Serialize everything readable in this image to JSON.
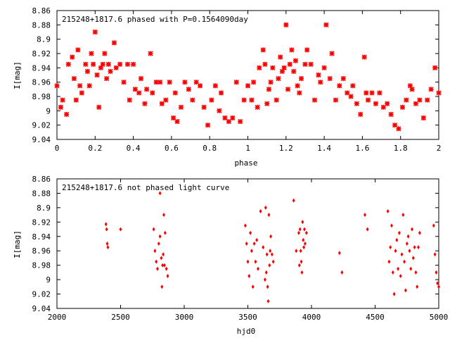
{
  "chart_data": [
    {
      "type": "scatter",
      "title": "215248+1817.6 phased with P=0.1564090day",
      "xlabel": "phase",
      "ylabel": "I[mag]",
      "xlim": [
        0,
        2
      ],
      "ylim": [
        9.04,
        8.86
      ],
      "y_inverted": true,
      "grid": false,
      "marker": "star",
      "color": "#ff0000",
      "xticks": [
        "0",
        "0.2",
        "0.4",
        "0.6",
        "0.8",
        "1",
        "1.2",
        "1.4",
        "1.6",
        "1.8",
        "2"
      ],
      "yticks": [
        "8.86",
        "8.88",
        "8.9",
        "8.92",
        "8.94",
        "8.96",
        "8.98",
        "9",
        "9.02",
        "9.04"
      ],
      "x": [
        0.0,
        0.02,
        0.03,
        0.05,
        0.06,
        0.08,
        0.09,
        0.1,
        0.11,
        0.12,
        0.13,
        0.15,
        0.16,
        0.17,
        0.18,
        0.19,
        0.2,
        0.21,
        0.22,
        0.23,
        0.24,
        0.25,
        0.26,
        0.27,
        0.28,
        0.3,
        0.31,
        0.33,
        0.35,
        0.37,
        0.38,
        0.4,
        0.41,
        0.43,
        0.44,
        0.46,
        0.47,
        0.49,
        0.5,
        0.52,
        0.54,
        0.55,
        0.57,
        0.59,
        0.61,
        0.62,
        0.63,
        0.65,
        0.67,
        0.69,
        0.71,
        0.73,
        0.75,
        0.77,
        0.79,
        0.81,
        0.83,
        0.85,
        0.86,
        0.88,
        0.9,
        0.92,
        0.94,
        0.96,
        0.98,
        1.0,
        1.02,
        1.03,
        1.05,
        1.06,
        1.08,
        1.09,
        1.1,
        1.11,
        1.12,
        1.13,
        1.15,
        1.16,
        1.17,
        1.18,
        1.19,
        1.2,
        1.21,
        1.22,
        1.23,
        1.24,
        1.25,
        1.26,
        1.27,
        1.28,
        1.3,
        1.31,
        1.33,
        1.35,
        1.37,
        1.38,
        1.4,
        1.41,
        1.43,
        1.44,
        1.46,
        1.48,
        1.5,
        1.52,
        1.54,
        1.55,
        1.57,
        1.59,
        1.61,
        1.62,
        1.63,
        1.65,
        1.67,
        1.69,
        1.71,
        1.73,
        1.75,
        1.77,
        1.79,
        1.81,
        1.83,
        1.85,
        1.86,
        1.88,
        1.9,
        1.92,
        1.94,
        1.96,
        1.98,
        2.0
      ],
      "y": [
        8.965,
        8.995,
        8.985,
        9.005,
        8.935,
        8.925,
        8.955,
        8.985,
        8.915,
        8.965,
        8.975,
        8.935,
        8.945,
        8.965,
        8.92,
        8.935,
        8.89,
        8.95,
        8.995,
        8.94,
        8.935,
        8.92,
        8.955,
        8.935,
        8.945,
        8.905,
        8.94,
        8.935,
        8.96,
        8.935,
        8.985,
        8.935,
        8.97,
        8.975,
        8.955,
        8.99,
        8.97,
        8.92,
        8.975,
        8.96,
        8.96,
        8.99,
        8.985,
        8.96,
        9.01,
        8.975,
        9.015,
        8.995,
        8.96,
        8.97,
        8.985,
        8.96,
        8.965,
        8.995,
        9.02,
        8.985,
        8.965,
        9.0,
        8.975,
        9.01,
        9.015,
        9.01,
        8.96,
        9.015,
        8.985,
        8.965,
        8.985,
        8.96,
        8.995,
        8.94,
        8.915,
        8.935,
        8.99,
        8.97,
        8.96,
        8.94,
        8.985,
        8.955,
        8.925,
        8.945,
        8.94,
        8.88,
        8.97,
        8.935,
        8.915,
        8.945,
        8.93,
        8.965,
        8.975,
        8.955,
        8.935,
        8.915,
        8.935,
        8.985,
        8.95,
        8.96,
        8.94,
        8.88,
        8.955,
        8.92,
        8.985,
        8.965,
        8.955,
        8.975,
        8.98,
        8.965,
        8.99,
        9.005,
        8.925,
        8.975,
        8.985,
        8.975,
        8.99,
        8.975,
        8.995,
        8.99,
        9.005,
        9.02,
        9.025,
        8.995,
        8.985,
        8.965,
        8.97,
        8.99,
        8.985,
        9.01,
        8.985,
        8.97,
        8.94,
        8.975
      ]
    },
    {
      "type": "scatter",
      "title": "215248+1817.6 not phased light curve",
      "xlabel": "hjd0",
      "ylabel": "I[mag]",
      "xlim": [
        2000,
        5000
      ],
      "ylim": [
        9.04,
        8.86
      ],
      "y_inverted": true,
      "grid": false,
      "marker": "diamond",
      "color": "#ff0000",
      "xticks": [
        "2000",
        "2500",
        "3000",
        "3500",
        "4000",
        "4500",
        "5000"
      ],
      "yticks": [
        "8.86",
        "8.88",
        "8.9",
        "8.92",
        "8.94",
        "8.96",
        "8.98",
        "9",
        "9.02",
        "9.04"
      ],
      "x": [
        2385,
        2395,
        2390,
        2400,
        2500,
        2760,
        2770,
        2780,
        2790,
        2800,
        2810,
        2820,
        2830,
        2840,
        2850,
        2860,
        2870,
        2810,
        2825,
        2835,
        2845,
        3480,
        3490,
        3500,
        3510,
        3520,
        3530,
        3540,
        3550,
        3560,
        3570,
        3580,
        3600,
        3620,
        3640,
        3650,
        3660,
        3670,
        3680,
        3690,
        3700,
        3635,
        3645,
        3655,
        3665,
        3675,
        3860,
        3880,
        3900,
        3910,
        3920,
        3930,
        3940,
        3950,
        3960,
        3905,
        3915,
        3925,
        3935,
        3945,
        4220,
        4240,
        4420,
        4440,
        4600,
        4610,
        4620,
        4630,
        4640,
        4650,
        4660,
        4670,
        4680,
        4690,
        4700,
        4710,
        4720,
        4730,
        4740,
        4750,
        4760,
        4770,
        4780,
        4790,
        4800,
        4810,
        4820,
        4830,
        4840,
        4850,
        4960,
        4970,
        4980,
        4990,
        5000
      ],
      "y": [
        8.923,
        8.95,
        8.93,
        8.955,
        8.93,
        8.93,
        8.96,
        8.975,
        8.985,
        8.95,
        8.94,
        8.97,
        8.98,
        8.91,
        8.935,
        8.985,
        8.995,
        8.88,
        9.01,
        8.965,
        8.98,
        8.925,
        8.95,
        8.975,
        8.995,
        8.935,
        8.96,
        9.01,
        8.95,
        8.975,
        8.945,
        8.985,
        8.905,
        8.955,
        8.9,
        8.965,
        9.03,
        8.98,
        8.94,
        8.965,
        8.975,
        9.0,
        8.99,
        9.01,
        8.91,
        8.96,
        8.89,
        8.96,
        8.935,
        8.93,
        8.975,
        8.92,
        8.955,
        8.95,
        8.935,
        8.98,
        8.96,
        8.99,
        8.945,
        8.93,
        8.963,
        8.99,
        8.91,
        8.93,
        8.905,
        8.975,
        8.955,
        8.925,
        8.99,
        9.02,
        8.96,
        8.945,
        8.985,
        8.935,
        8.995,
        8.965,
        8.91,
        8.975,
        9.015,
        8.95,
        8.94,
        8.96,
        8.985,
        8.93,
        8.97,
        8.955,
        8.99,
        9.01,
        8.955,
        8.935,
        8.925,
        8.965,
        8.99,
        9.005,
        9.01
      ]
    }
  ]
}
